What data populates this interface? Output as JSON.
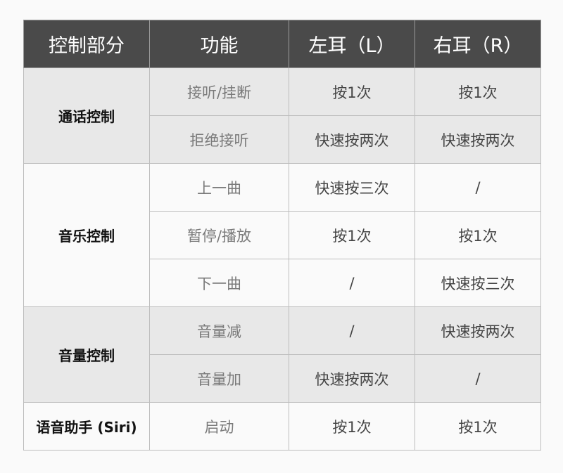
{
  "headers": [
    "控制部分",
    "功能",
    "左耳（L）",
    "右耳（R）"
  ],
  "groups": [
    {
      "label": "通话控制",
      "rows": [
        {
          "function": "接听/挂断",
          "left": "按1次",
          "right": "按1次"
        },
        {
          "function": "拒绝接听",
          "left": "快速按两次",
          "right": "快速按两次"
        }
      ]
    },
    {
      "label": "音乐控制",
      "rows": [
        {
          "function": "上一曲",
          "left": "快速按三次",
          "right": "/"
        },
        {
          "function": "暂停/播放",
          "left": "按1次",
          "right": "按1次"
        },
        {
          "function": "下一曲",
          "left": "/",
          "right": "快速按三次"
        }
      ]
    },
    {
      "label": "音量控制",
      "rows": [
        {
          "function": "音量减",
          "left": "/",
          "right": "快速按两次"
        },
        {
          "function": "音量加",
          "left": "快速按两次",
          "right": "/"
        }
      ]
    },
    {
      "label": "语音助手 (Siri)",
      "rows": [
        {
          "function": "启动",
          "left": "按1次",
          "right": "按1次"
        }
      ]
    }
  ],
  "colors": {
    "header_bg": "#4a4a4a",
    "shaded_row": "#e8e8e8",
    "plain_row": "#fafafa"
  }
}
